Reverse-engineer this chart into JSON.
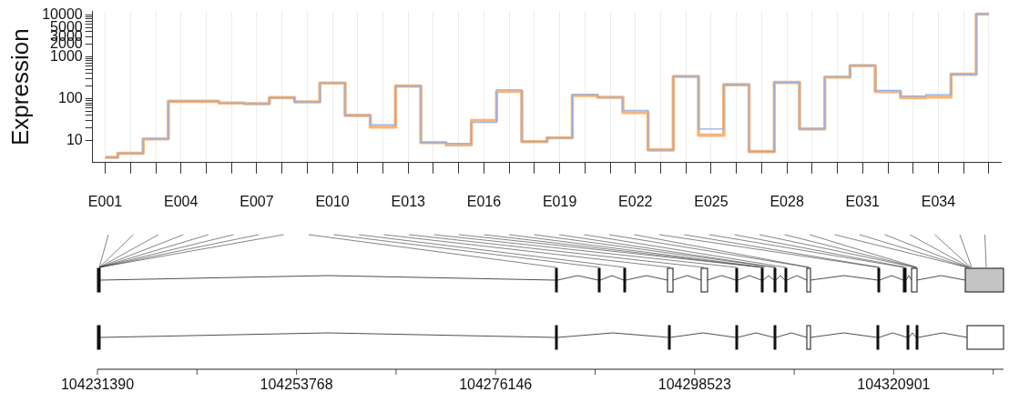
{
  "chart_data": {
    "type": "step",
    "ylabel": "Expression",
    "categories": [
      "E001",
      null,
      null,
      "E004",
      null,
      null,
      "E007",
      null,
      null,
      "E010",
      null,
      null,
      "E013",
      null,
      null,
      "E016",
      null,
      null,
      "E019",
      null,
      null,
      "E022",
      null,
      null,
      "E025",
      null,
      null,
      "E028",
      null,
      null,
      "E031",
      null,
      null,
      "E034",
      null,
      null
    ],
    "series": [
      {
        "color": "#8aaee8",
        "values": [
          4,
          5,
          11,
          87,
          87,
          79,
          76,
          106,
          84,
          237,
          40,
          24,
          200,
          9,
          8.5,
          27,
          163,
          9.5,
          11.7,
          124,
          108,
          53,
          6,
          339,
          19,
          216,
          5.5,
          244,
          19,
          328,
          628,
          158,
          116,
          124,
          383,
          10400
        ]
      },
      {
        "color": "#f5b57c",
        "values": [
          4,
          5,
          11,
          87,
          87,
          79,
          76,
          106,
          84,
          237,
          40,
          21,
          200,
          9,
          8,
          30,
          149,
          9.5,
          11.7,
          120,
          108,
          47,
          6,
          339,
          13.5,
          216,
          5.5,
          244,
          19,
          328,
          610,
          148,
          106,
          109,
          383,
          10400
        ]
      }
    ],
    "log": "y",
    "ylim": [
      3,
      12000
    ],
    "yticks": [
      10,
      {
        "value": 20,
        "label": null
      },
      {
        "value": 30,
        "label": null
      },
      {
        "value": 40,
        "label": null
      },
      {
        "value": 50,
        "label": null
      },
      {
        "value": 60,
        "label": null
      },
      {
        "value": 70,
        "label": null
      },
      {
        "value": 80,
        "label": null
      },
      {
        "value": 90,
        "label": null
      },
      100,
      {
        "value": 200,
        "label": null
      },
      {
        "value": 300,
        "label": null
      },
      {
        "value": 400,
        "label": null
      },
      {
        "value": 500,
        "label": null
      },
      {
        "value": 600,
        "label": null
      },
      {
        "value": 700,
        "label": null
      },
      {
        "value": 800,
        "label": null
      },
      {
        "value": 900,
        "label": null
      },
      1000,
      2000,
      3000,
      {
        "value": 4000,
        "label": null
      },
      5000,
      {
        "value": 6000,
        "label": null
      },
      {
        "value": 7000,
        "label": null
      },
      {
        "value": 8000,
        "label": null
      },
      {
        "value": 9000,
        "label": null
      },
      10000
    ],
    "grid": "x",
    "marker": "none",
    "line_style": "solid",
    "annotations": [
      "104231390",
      "104253768",
      "104276146",
      "104298523",
      "104320901"
    ]
  }
}
